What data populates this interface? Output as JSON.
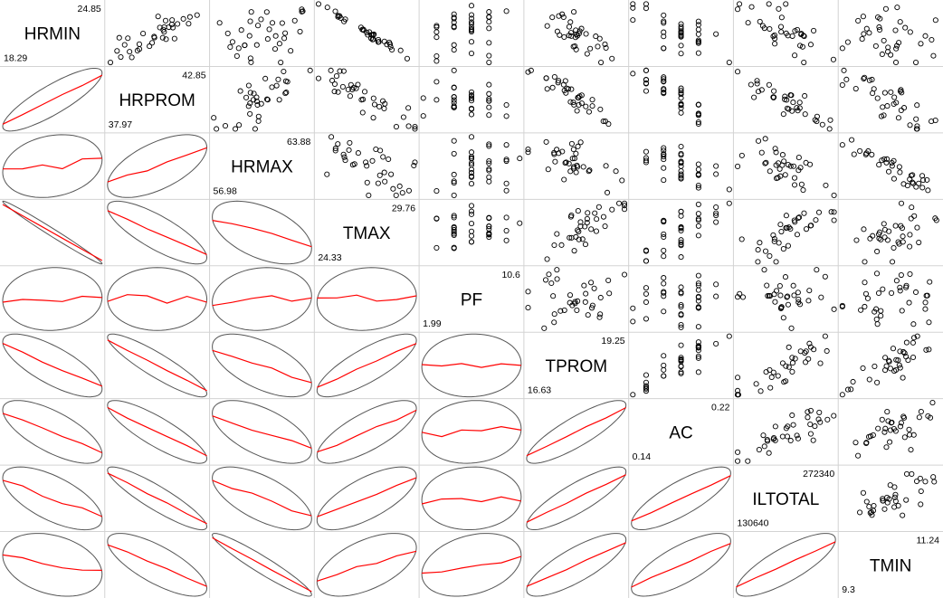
{
  "chart_data": {
    "type": "scatter-matrix",
    "upper_panels": "scatter",
    "lower_panels": "correlation-ellipse-with-smoother",
    "point_marker": "open-circle",
    "variables": [
      {
        "name": "HRMIN",
        "min": "18.29",
        "max": "24.85"
      },
      {
        "name": "HRPROM",
        "min": "37.97",
        "max": "42.85"
      },
      {
        "name": "HRMAX",
        "min": "56.98",
        "max": "63.88"
      },
      {
        "name": "TMAX",
        "min": "24.33",
        "max": "29.76"
      },
      {
        "name": "PF",
        "min": "1.99",
        "max": "10.6"
      },
      {
        "name": "TPROM",
        "min": "16.63",
        "max": "19.25"
      },
      {
        "name": "AC",
        "min": "0.14",
        "max": "0.22"
      },
      {
        "name": "ILTOTAL",
        "min": "130640",
        "max": "272340"
      },
      {
        "name": "TMIN",
        "min": "9.3",
        "max": "11.24"
      }
    ],
    "correlations_approx": [
      [
        1,
        0.85,
        0.2,
        -0.99,
        0.05,
        -0.75,
        -0.7,
        -0.65,
        -0.3
      ],
      [
        0.85,
        1,
        0.6,
        -0.8,
        0.0,
        -0.9,
        -0.85,
        -0.9,
        -0.75
      ],
      [
        0.2,
        0.6,
        1,
        -0.5,
        0.1,
        -0.6,
        -0.6,
        -0.65,
        -0.95
      ],
      [
        -0.99,
        -0.8,
        -0.5,
        1,
        0.1,
        0.8,
        0.75,
        0.7,
        0.55
      ],
      [
        0.05,
        0.0,
        0.1,
        0.1,
        1,
        0.05,
        0.1,
        0.05,
        0.3
      ],
      [
        -0.75,
        -0.9,
        -0.6,
        0.8,
        0.05,
        1,
        0.85,
        0.85,
        0.8
      ],
      [
        -0.7,
        -0.85,
        -0.6,
        0.75,
        0.1,
        0.85,
        1,
        0.8,
        0.75
      ],
      [
        -0.65,
        -0.9,
        -0.65,
        0.7,
        0.05,
        0.85,
        0.8,
        1,
        0.8
      ],
      [
        -0.3,
        -0.75,
        -0.95,
        0.55,
        0.3,
        0.8,
        0.75,
        0.8,
        1
      ]
    ],
    "colors": {
      "smoother": "#ff0000",
      "ellipse": "#555555",
      "grid": "#d3d3d3",
      "points": "#000000"
    }
  }
}
